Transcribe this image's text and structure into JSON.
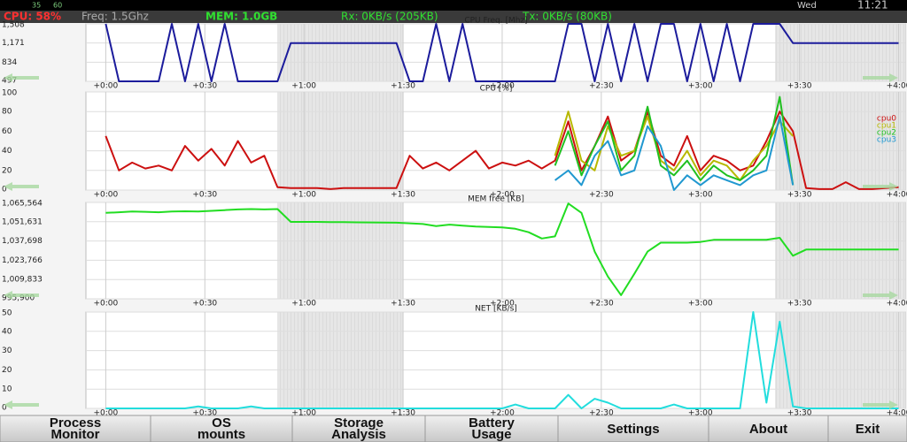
{
  "status_bar": {
    "left": [
      "35",
      "60"
    ],
    "day": "Wed",
    "time": "11:21"
  },
  "header": {
    "cpu": "CPU: 58%",
    "freq": "Freq: 1.5Ghz",
    "mem": "MEM: 1.0GB",
    "rx": "Rx: 0KB/s (205KB)",
    "tx": "Tx: 0KB/s (80KB)"
  },
  "chart_data": [
    {
      "type": "line",
      "title": "CPU Freq. [Mhz]",
      "x": [
        0,
        4,
        8,
        12,
        16,
        20,
        24,
        28,
        32,
        36,
        40,
        44,
        48,
        52,
        56,
        60,
        64,
        68,
        72,
        76,
        80,
        84,
        88,
        92,
        96,
        100,
        104,
        108,
        112,
        116,
        120,
        124,
        128,
        132,
        136,
        140,
        144,
        148,
        152,
        156,
        160,
        164,
        168,
        172,
        176,
        180,
        184,
        188,
        192,
        196,
        200,
        204,
        208,
        212,
        216,
        220,
        224,
        228,
        232,
        236,
        240
      ],
      "values": [
        1508,
        497,
        497,
        497,
        497,
        1508,
        497,
        1508,
        497,
        1508,
        497,
        497,
        497,
        497,
        1171,
        1171,
        1171,
        1171,
        1171,
        1171,
        1171,
        1171,
        1171,
        497,
        497,
        1508,
        497,
        1508,
        497,
        497,
        497,
        497,
        497,
        497,
        497,
        1508,
        1508,
        497,
        1508,
        497,
        1508,
        497,
        1508,
        1508,
        497,
        1508,
        497,
        1508,
        497,
        1508,
        1508,
        1508,
        1171,
        1171,
        1171,
        1171,
        1171,
        1171,
        1171,
        1171,
        1171
      ],
      "color": "#1c1c9c",
      "xlim": [
        -6,
        242
      ],
      "ylim": [
        497,
        1508
      ],
      "yticks": [
        497,
        834,
        {
          "value": 1171,
          "label": "1,171"
        },
        {
          "value": 1508,
          "label": "1,508"
        }
      ],
      "xticks": [
        {
          "value": 0,
          "label": "+0:00"
        },
        {
          "value": 30,
          "label": "+0:30"
        },
        {
          "value": 60,
          "label": "+1:00"
        },
        {
          "value": 90,
          "label": "+1:30"
        },
        {
          "value": 120,
          "label": "+2:00"
        },
        {
          "value": 150,
          "label": "+2:30"
        },
        {
          "value": 180,
          "label": "+3:00"
        },
        {
          "value": 210,
          "label": "+3:30"
        },
        {
          "value": 240,
          "label": "+4:00"
        }
      ],
      "grid": true
    },
    {
      "type": "line",
      "title": "CPU [%]",
      "x": [
        0,
        4,
        8,
        12,
        16,
        20,
        24,
        28,
        32,
        36,
        40,
        44,
        48,
        52,
        56,
        60,
        64,
        68,
        72,
        76,
        80,
        84,
        88,
        92,
        96,
        100,
        104,
        108,
        112,
        116,
        120,
        124,
        128,
        132,
        136,
        140,
        144,
        148,
        152,
        156,
        160,
        164,
        168,
        172,
        176,
        180,
        184,
        188,
        192,
        196,
        200,
        204,
        208,
        212,
        216,
        220,
        224,
        228,
        232,
        236,
        240
      ],
      "series": [
        {
          "name": "cpu0",
          "color": "#cc1010",
          "values": [
            55,
            20,
            28,
            22,
            25,
            20,
            45,
            30,
            42,
            25,
            50,
            28,
            35,
            3,
            2,
            2,
            2,
            1,
            2,
            2,
            2,
            2,
            2,
            35,
            22,
            28,
            20,
            30,
            40,
            22,
            28,
            25,
            30,
            22,
            30,
            70,
            20,
            45,
            75,
            30,
            40,
            80,
            35,
            25,
            55,
            20,
            35,
            30,
            20,
            25,
            50,
            80,
            60,
            2,
            1,
            1,
            8,
            1,
            1,
            2,
            3
          ]
        },
        {
          "name": "cpu1",
          "color": "#b8b800",
          "values": [
            null,
            null,
            null,
            null,
            null,
            null,
            null,
            null,
            null,
            null,
            null,
            null,
            null,
            null,
            null,
            null,
            null,
            null,
            null,
            null,
            null,
            null,
            null,
            null,
            null,
            null,
            null,
            null,
            null,
            null,
            null,
            null,
            null,
            null,
            35,
            80,
            30,
            20,
            65,
            35,
            40,
            75,
            30,
            20,
            40,
            15,
            30,
            25,
            10,
            30,
            45,
            70,
            55,
            null,
            null,
            null,
            null,
            null,
            null,
            null,
            null
          ]
        },
        {
          "name": "cpu2",
          "color": "#20c020",
          "values": [
            null,
            null,
            null,
            null,
            null,
            null,
            null,
            null,
            null,
            null,
            null,
            null,
            null,
            null,
            null,
            null,
            null,
            null,
            null,
            null,
            null,
            null,
            null,
            null,
            null,
            null,
            null,
            null,
            null,
            null,
            null,
            null,
            null,
            null,
            25,
            60,
            15,
            45,
            70,
            20,
            35,
            85,
            25,
            15,
            30,
            10,
            25,
            15,
            10,
            20,
            35,
            95,
            5,
            null,
            null,
            null,
            null,
            null,
            null,
            null,
            null
          ]
        },
        {
          "name": "cpu3",
          "color": "#2098d0",
          "values": [
            null,
            null,
            null,
            null,
            null,
            null,
            null,
            null,
            null,
            null,
            null,
            null,
            null,
            null,
            null,
            null,
            null,
            null,
            null,
            null,
            null,
            null,
            null,
            null,
            null,
            null,
            null,
            null,
            null,
            null,
            null,
            null,
            null,
            null,
            10,
            20,
            5,
            35,
            50,
            15,
            20,
            65,
            45,
            0,
            15,
            5,
            15,
            10,
            5,
            15,
            20,
            75,
            5,
            null,
            null,
            null,
            null,
            null,
            null,
            null,
            null
          ]
        }
      ],
      "xlim": [
        -6,
        242
      ],
      "ylim": [
        0,
        100
      ],
      "yticks": [
        0,
        20,
        40,
        60,
        80,
        100
      ],
      "xticks": [
        {
          "value": 0,
          "label": "+0:00"
        },
        {
          "value": 30,
          "label": "+0:30"
        },
        {
          "value": 60,
          "label": "+1:00"
        },
        {
          "value": 90,
          "label": "+1:30"
        },
        {
          "value": 120,
          "label": "+2:00"
        },
        {
          "value": 150,
          "label": "+2:30"
        },
        {
          "value": 180,
          "label": "+3:00"
        },
        {
          "value": 210,
          "label": "+3:30"
        },
        {
          "value": 240,
          "label": "+4:00"
        }
      ],
      "grid": true,
      "legend": "top-right"
    },
    {
      "type": "line",
      "title": "MEM free [KB]",
      "x": [
        0,
        4,
        8,
        12,
        16,
        20,
        24,
        28,
        32,
        36,
        40,
        44,
        48,
        52,
        56,
        60,
        64,
        68,
        72,
        76,
        80,
        84,
        88,
        92,
        96,
        100,
        104,
        108,
        112,
        116,
        120,
        124,
        128,
        132,
        136,
        140,
        144,
        148,
        152,
        156,
        160,
        164,
        168,
        172,
        176,
        180,
        184,
        188,
        192,
        196,
        200,
        204,
        208,
        212,
        216,
        220,
        224,
        228,
        232,
        236,
        240
      ],
      "values": [
        1058000,
        1058500,
        1059000,
        1058800,
        1058500,
        1059000,
        1059200,
        1059000,
        1059500,
        1060000,
        1060500,
        1060800,
        1060500,
        1060800,
        1051500,
        1051500,
        1051500,
        1051400,
        1051300,
        1051200,
        1051100,
        1051000,
        1050900,
        1050500,
        1050000,
        1048500,
        1049500,
        1048800,
        1048200,
        1047800,
        1047500,
        1046500,
        1044000,
        1039500,
        1041000,
        1064800,
        1058000,
        1030000,
        1012000,
        998500,
        1014000,
        1030000,
        1036500,
        1036500,
        1036500,
        1037000,
        1038500,
        1038500,
        1038500,
        1038500,
        1038500,
        1040000,
        1027000,
        1031500,
        1031500,
        1031500,
        1031500,
        1031500,
        1031500,
        1031500,
        1031500
      ],
      "color": "#22dd22",
      "xlim": [
        -6,
        242
      ],
      "ylim": [
        995900,
        1065564
      ],
      "yticks": [
        {
          "value": 995900,
          "label": "995,900"
        },
        {
          "value": 1009833,
          "label": "1,009,833"
        },
        {
          "value": 1023766,
          "label": "1,023,766"
        },
        {
          "value": 1037698,
          "label": "1,037,698"
        },
        {
          "value": 1051631,
          "label": "1,051,631"
        },
        {
          "value": 1065564,
          "label": "1,065,564"
        }
      ],
      "xticks": [
        {
          "value": 0,
          "label": "+0:00"
        },
        {
          "value": 30,
          "label": "+0:30"
        },
        {
          "value": 60,
          "label": "+1:00"
        },
        {
          "value": 90,
          "label": "+1:30"
        },
        {
          "value": 120,
          "label": "+2:00"
        },
        {
          "value": 150,
          "label": "+2:30"
        },
        {
          "value": 180,
          "label": "+3:00"
        },
        {
          "value": 210,
          "label": "+3:30"
        },
        {
          "value": 240,
          "label": "+4:00"
        }
      ],
      "grid": true
    },
    {
      "type": "line",
      "title": "NET [KB/s]",
      "x": [
        0,
        4,
        8,
        12,
        16,
        20,
        24,
        28,
        32,
        36,
        40,
        44,
        48,
        52,
        56,
        60,
        64,
        68,
        72,
        76,
        80,
        84,
        88,
        92,
        96,
        100,
        104,
        108,
        112,
        116,
        120,
        124,
        128,
        132,
        136,
        140,
        144,
        148,
        152,
        156,
        160,
        164,
        168,
        172,
        176,
        180,
        184,
        188,
        192,
        196,
        200,
        204,
        208,
        212,
        216,
        220,
        224,
        228,
        232,
        236,
        240
      ],
      "values": [
        0,
        0,
        0,
        0,
        0,
        0,
        0,
        1,
        0,
        0,
        0,
        1,
        0,
        0,
        0,
        0,
        0,
        0,
        0,
        0,
        0,
        0,
        0,
        0,
        0,
        0,
        0,
        0,
        0,
        0,
        0,
        2,
        0,
        0,
        0,
        7,
        0,
        5,
        3,
        0,
        0,
        0,
        0,
        2,
        0,
        0,
        0,
        0,
        0,
        50,
        3,
        45,
        1,
        0,
        0,
        0,
        0,
        0,
        0,
        0,
        0
      ],
      "color": "#22dddd",
      "xlim": [
        -6,
        242
      ],
      "ylim": [
        0,
        50
      ],
      "yticks": [
        0,
        10,
        20,
        30,
        40,
        50
      ],
      "xticks": [
        {
          "value": 0,
          "label": "+0:00"
        },
        {
          "value": 30,
          "label": "+0:30"
        },
        {
          "value": 60,
          "label": "+1:00"
        },
        {
          "value": 90,
          "label": "+1:30"
        },
        {
          "value": 120,
          "label": "+2:00"
        },
        {
          "value": 150,
          "label": "+2:30"
        },
        {
          "value": 180,
          "label": "+3:00"
        },
        {
          "value": 210,
          "label": "+3:30"
        },
        {
          "value": 240,
          "label": "+4:00"
        }
      ],
      "grid": true
    }
  ],
  "buttons": [
    [
      "Process",
      "Monitor"
    ],
    [
      "OS",
      "mounts"
    ],
    [
      "Storage",
      "Analysis"
    ],
    [
      "Battery",
      "Usage"
    ],
    [
      "Settings"
    ],
    [
      "About"
    ],
    [
      "Exit"
    ]
  ]
}
